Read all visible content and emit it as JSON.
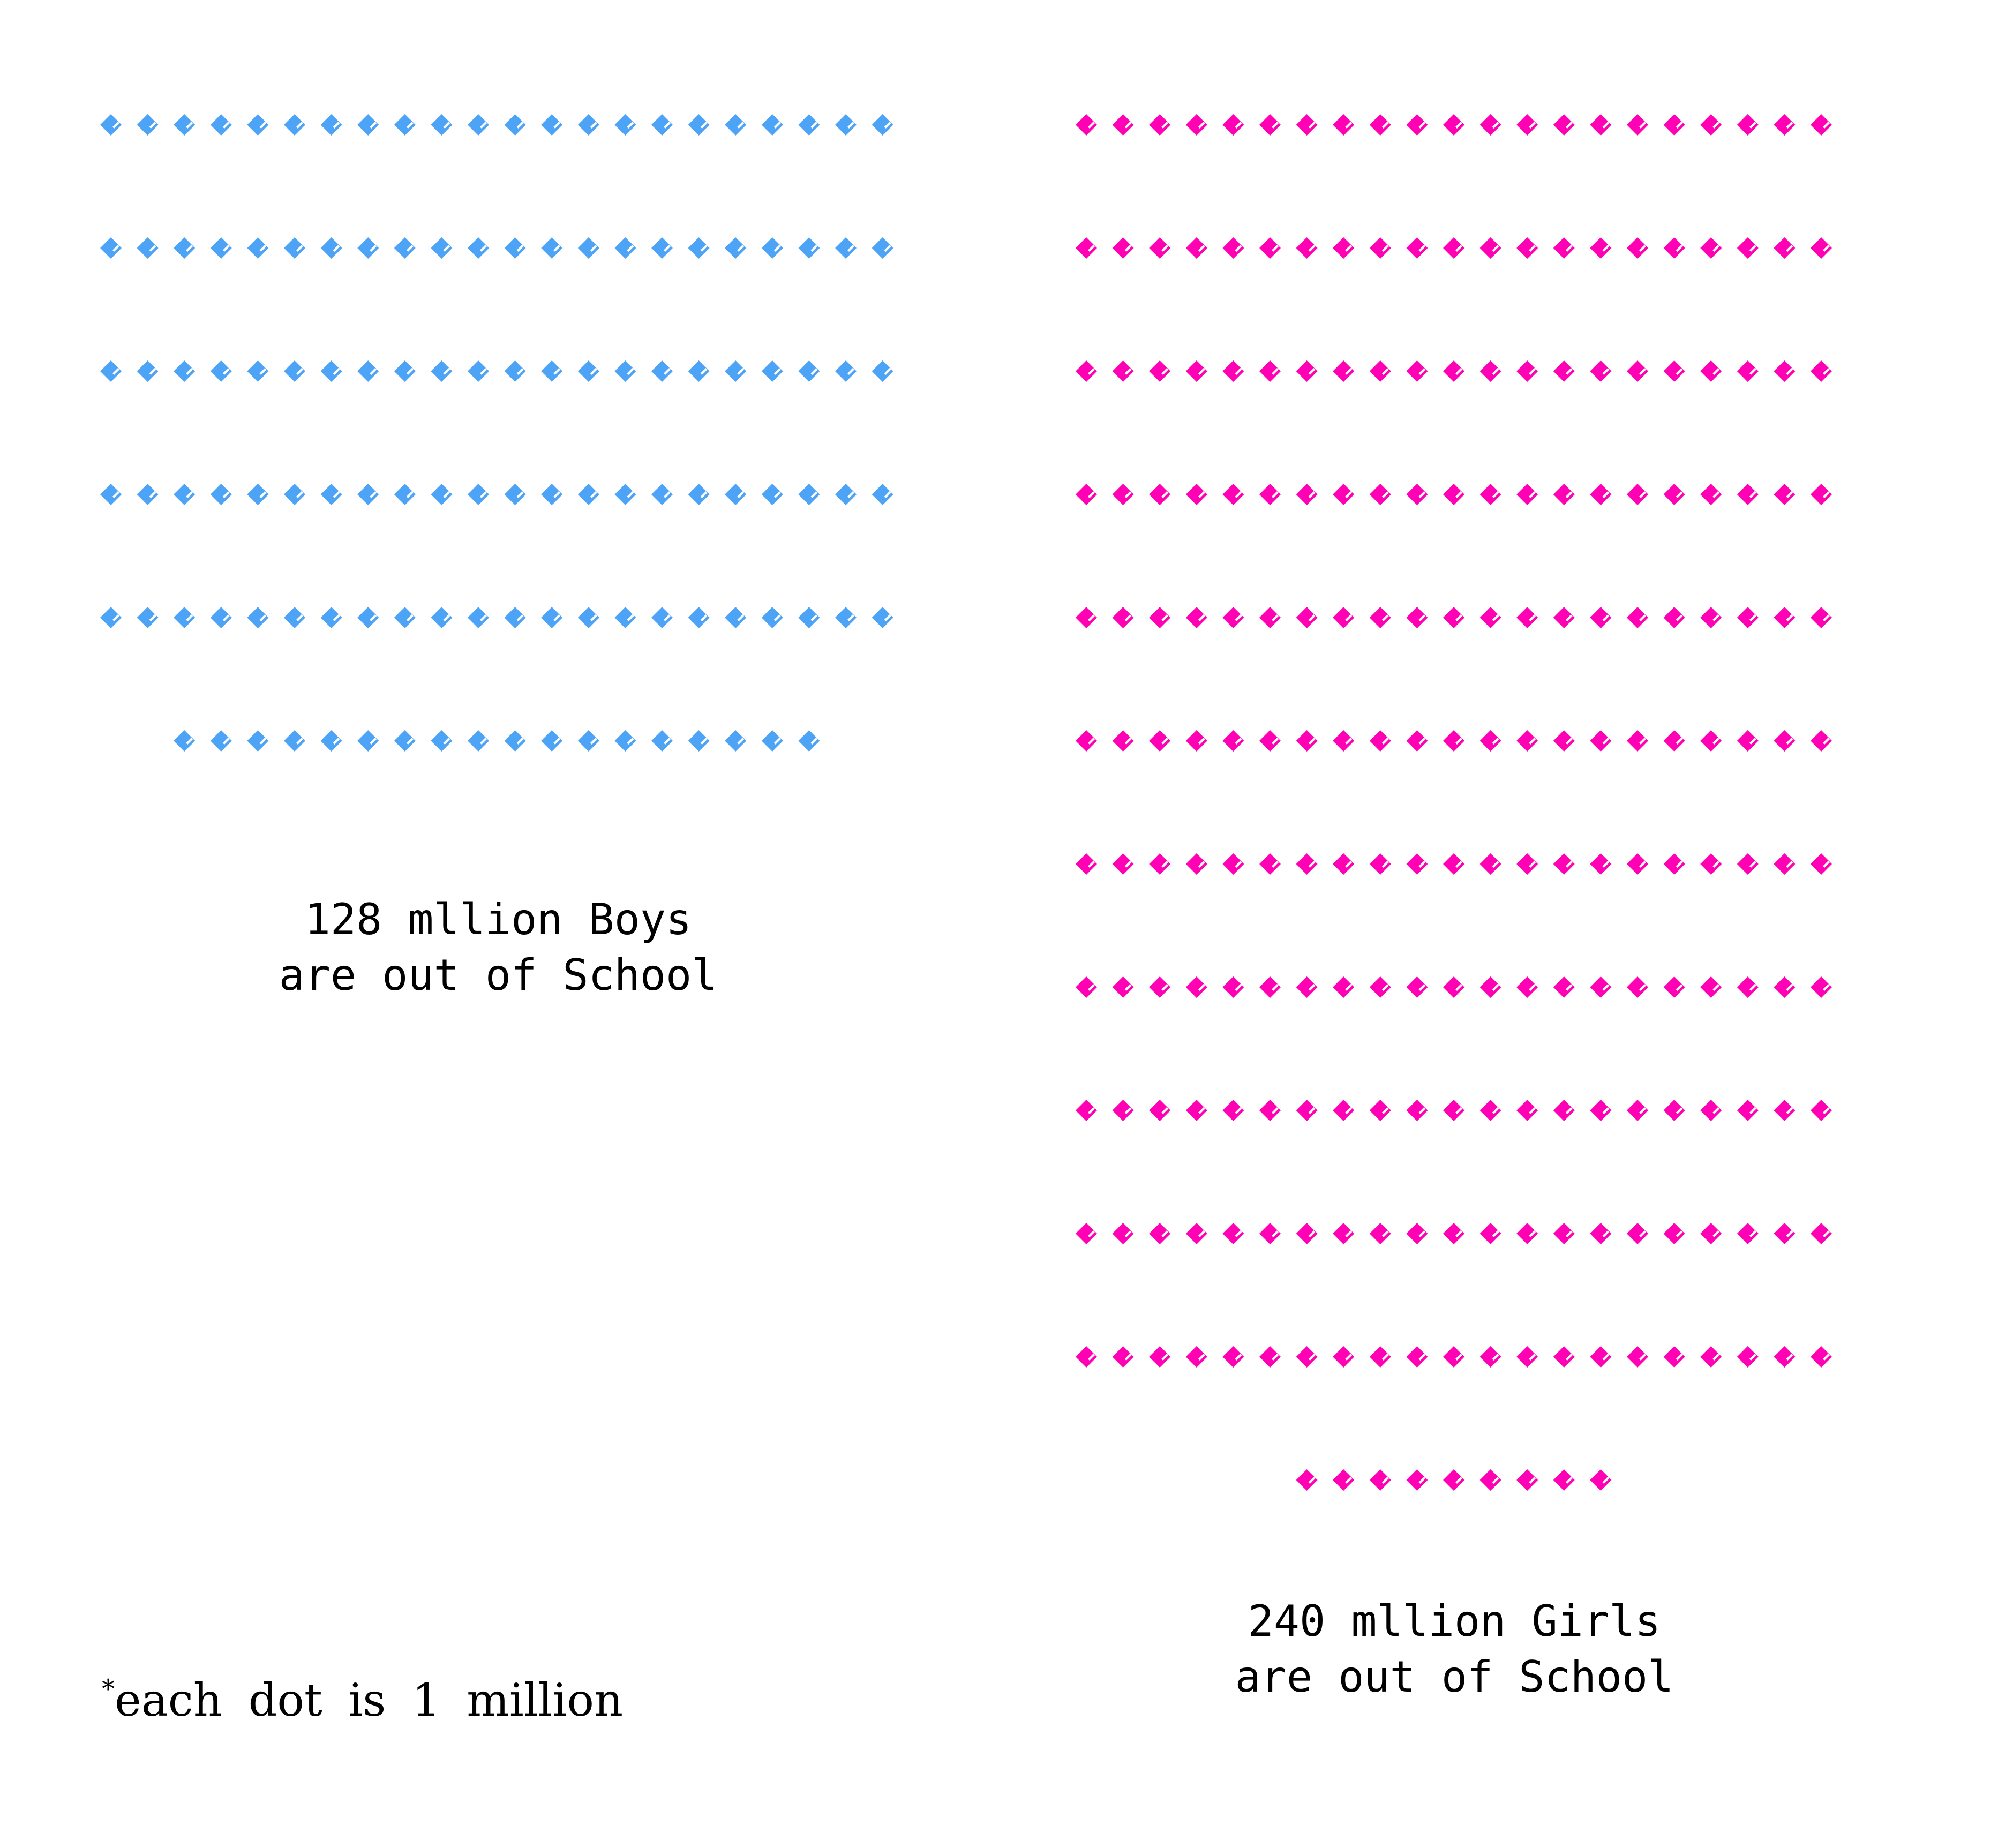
{
  "chart_data": {
    "type": "pictogram",
    "unit_note": {
      "marker": "*",
      "text": "each dot is 1 million"
    },
    "groups": [
      {
        "key": "boys",
        "value": 128,
        "per_row": 22,
        "color": "#4da3f5",
        "caption_lines": [
          "128 mllion Boys",
          "are out of School"
        ]
      },
      {
        "key": "girls",
        "value": 240,
        "per_row": 21,
        "color": "#ff00b4",
        "caption_lines": [
          "240 mllion Girls",
          "are out of School"
        ]
      }
    ]
  }
}
